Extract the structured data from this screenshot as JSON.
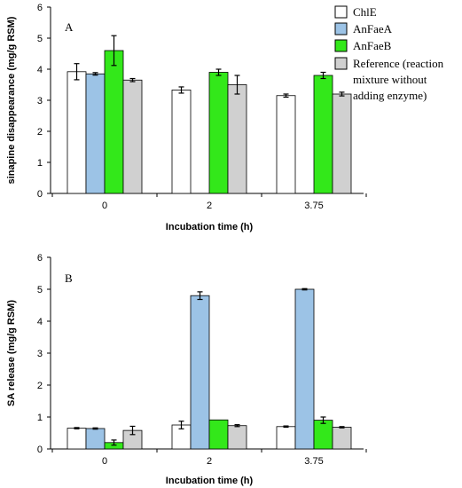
{
  "chart_data": [
    {
      "panel_label": "A",
      "type": "bar",
      "categories": [
        "0",
        "2",
        "3.75"
      ],
      "xlabel": "Incubation time (h)",
      "ylabel": "sinapine disappearance (mg/g RSM)",
      "ylim": [
        0,
        6
      ],
      "yticks": [
        "0",
        "1",
        "2",
        "3",
        "4",
        "5",
        "6"
      ],
      "grid": false,
      "legend_position": "top-right",
      "series": [
        {
          "name": "ChlE",
          "color": "#ffffff",
          "values": [
            3.92,
            3.33,
            3.15
          ],
          "errors": [
            0.26,
            0.1,
            0.05
          ]
        },
        {
          "name": "AnFaeA",
          "color": "#9cc3e6",
          "values": [
            3.85,
            0.0,
            0.0
          ],
          "errors": [
            0.04,
            0.0,
            0.0
          ]
        },
        {
          "name": "AnFaeB",
          "color": "#33e81a",
          "values": [
            4.6,
            3.9,
            3.8
          ],
          "errors": [
            0.48,
            0.1,
            0.1
          ]
        },
        {
          "name": "Reference (reaction mixture without adding enzyme)",
          "color": "#d0d0d0",
          "values": [
            3.65,
            3.5,
            3.2
          ],
          "errors": [
            0.05,
            0.3,
            0.06
          ]
        }
      ]
    },
    {
      "panel_label": "B",
      "type": "bar",
      "categories": [
        "0",
        "2",
        "3.75"
      ],
      "xlabel": "Incubation time (h)",
      "ylabel": "SA release (mg/g RSM)",
      "ylim": [
        0,
        6
      ],
      "yticks": [
        "0",
        "1",
        "2",
        "3",
        "4",
        "5",
        "6"
      ],
      "grid": false,
      "series": [
        {
          "name": "ChlE",
          "color": "#ffffff",
          "values": [
            0.65,
            0.75,
            0.7
          ],
          "errors": [
            0.02,
            0.12,
            0.02
          ]
        },
        {
          "name": "AnFaeA",
          "color": "#9cc3e6",
          "values": [
            0.64,
            4.8,
            5.0
          ],
          "errors": [
            0.02,
            0.12,
            0.02
          ]
        },
        {
          "name": "AnFaeB",
          "color": "#33e81a",
          "values": [
            0.2,
            0.91,
            0.9
          ],
          "errors": [
            0.08,
            0.0,
            0.1
          ]
        },
        {
          "name": "Reference (reaction mixture without adding enzyme)",
          "color": "#d0d0d0",
          "values": [
            0.58,
            0.73,
            0.68
          ],
          "errors": [
            0.13,
            0.03,
            0.02
          ]
        }
      ]
    }
  ],
  "legend": {
    "items": [
      {
        "lines": [
          "ChlE"
        ]
      },
      {
        "lines": [
          "AnFaeA"
        ]
      },
      {
        "lines": [
          "AnFaeB"
        ]
      },
      {
        "lines": [
          "Reference (reaction",
          "mixture without",
          "adding enzyme)"
        ]
      }
    ]
  }
}
